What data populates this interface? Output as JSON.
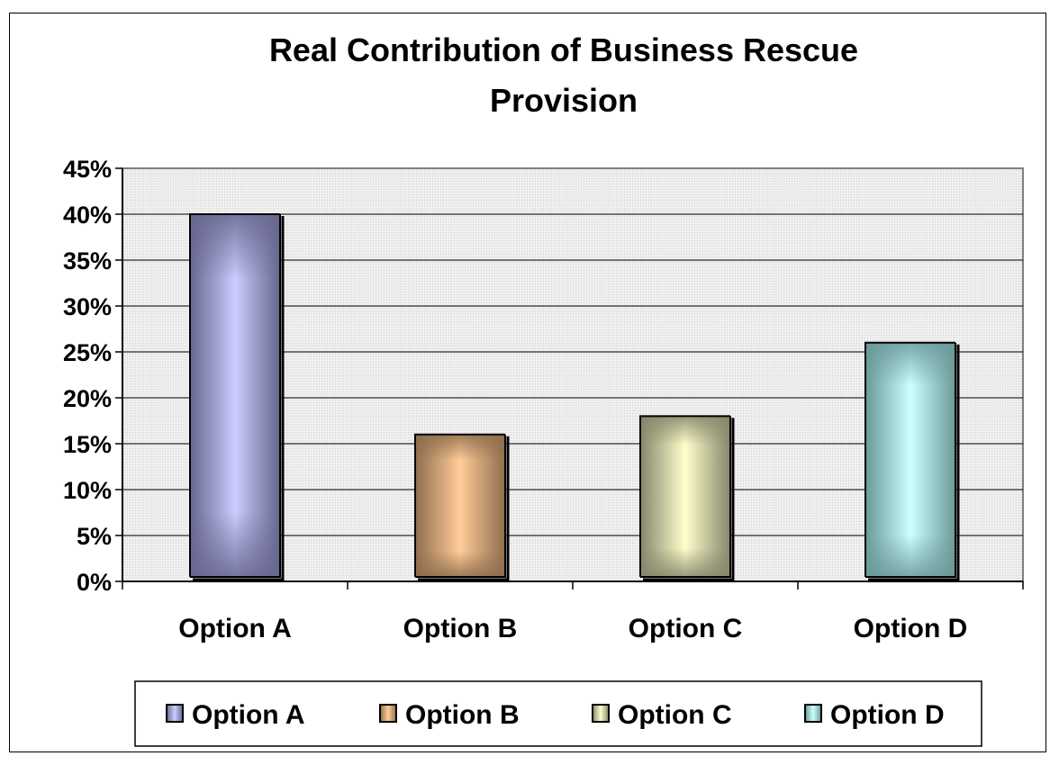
{
  "chart_data": {
    "type": "bar",
    "title_lines": [
      "Real Contribution of Business Rescue",
      "Provision"
    ],
    "categories": [
      "Option A",
      "Option B",
      "Option C",
      "Option D"
    ],
    "values": [
      40,
      16,
      18,
      26
    ],
    "value_unit": "%",
    "ylim": [
      0,
      45
    ],
    "ytick_step": 5,
    "xlabel": "",
    "ylabel": "",
    "grid": true,
    "legend_position": "bottom",
    "legend": [
      "Option A",
      "Option B",
      "Option C",
      "Option D"
    ],
    "colors": [
      {
        "edge": "#66668f",
        "center": "#ccccff"
      },
      {
        "edge": "#8f6d4d",
        "center": "#ffcc99"
      },
      {
        "edge": "#86866b",
        "center": "#ffffcc"
      },
      {
        "edge": "#6a9999",
        "center": "#ccffff"
      }
    ]
  }
}
